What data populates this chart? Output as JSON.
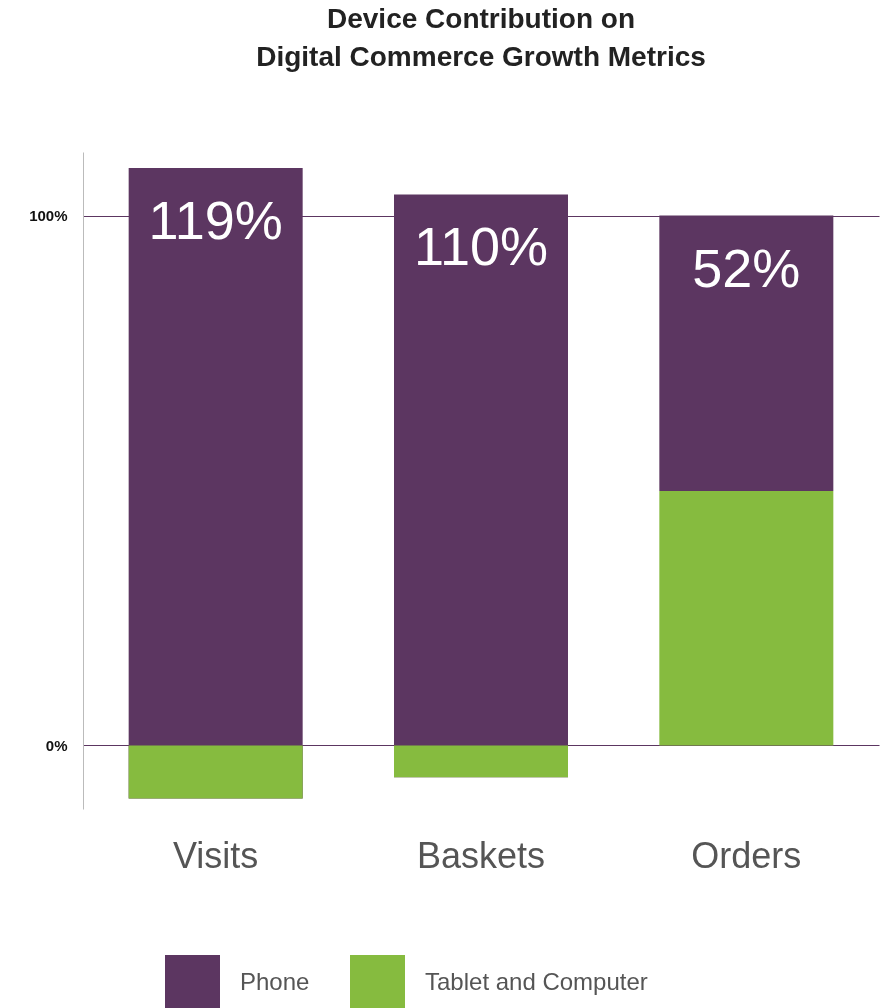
{
  "chart_data": {
    "type": "bar",
    "title": "Device Contribution on\nDigital Commerce Growth Metrics",
    "categories": [
      "Visits",
      "Baskets",
      "Orders"
    ],
    "series": [
      {
        "name": "Phone",
        "color": "#5c3661",
        "base": [
          -10,
          -6,
          48
        ],
        "values": [
          119,
          110,
          52
        ],
        "value_labels": [
          "119%",
          "110%",
          "52%"
        ]
      },
      {
        "name": "Tablet and Computer",
        "color": "#86bb3f",
        "values": [
          -10,
          -6,
          48
        ]
      }
    ],
    "ylim": [
      -12,
      112
    ],
    "yticks": [
      {
        "value": 0,
        "label": "0%"
      },
      {
        "value": 100,
        "label": "100%"
      }
    ],
    "grid": "y",
    "legend": "bottom"
  }
}
